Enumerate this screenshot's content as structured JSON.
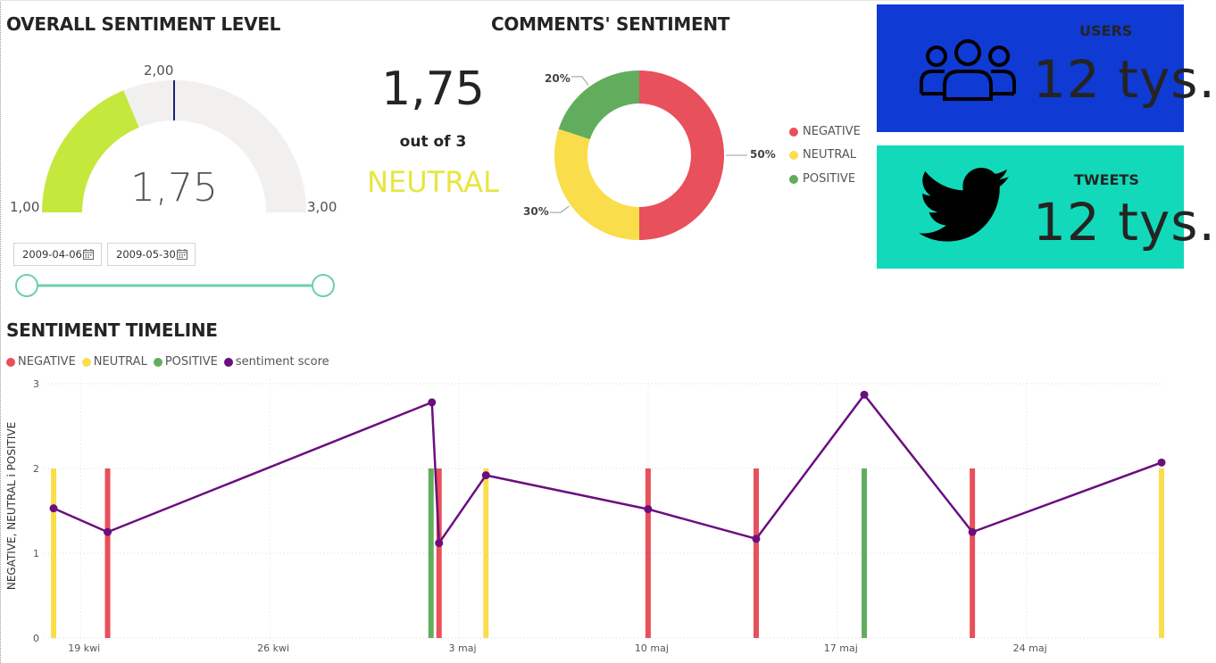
{
  "gauge": {
    "title": "OVERALL SENTIMENT LEVEL",
    "value_text": "1,75",
    "min_text": "1,00",
    "max_text": "3,00",
    "target_text": "2,00",
    "value": 1.75,
    "min": 1,
    "max": 3,
    "target": 2,
    "fill_color": "#c5e83c",
    "track_color": "#f1f0ef",
    "target_color": "#1a237e"
  },
  "score_card": {
    "value": "1,75",
    "subtitle": "out of 3",
    "status": "NEUTRAL",
    "status_color": "#e6e640"
  },
  "date_slicer": {
    "start": "2009-04-06",
    "end": "2009-05-30",
    "start_icon": "calendar-icon",
    "end_icon": "calendar-icon",
    "range_start": 0,
    "range_end": 1,
    "track_color": "#6dcfb0"
  },
  "donut": {
    "title": "COMMENTS' SENTIMENT",
    "slices": [
      {
        "name": "NEGATIVE",
        "value": 50,
        "label": "50%",
        "color": "#e8505b"
      },
      {
        "name": "NEUTRAL",
        "value": 30,
        "label": "30%",
        "color": "#fadd4b"
      },
      {
        "name": "POSITIVE",
        "value": 20,
        "label": "20%",
        "color": "#62ad5d"
      }
    ],
    "legend": [
      "NEGATIVE",
      "NEUTRAL",
      "POSITIVE"
    ]
  },
  "kpis": {
    "users": {
      "label": "USERS",
      "value": "12 tys.",
      "icon": "users-icon",
      "bg": "#0f3ad3"
    },
    "tweets": {
      "label": "TWEETS",
      "value": "12 tys.",
      "icon": "twitter-bird-icon",
      "bg": "#12d9ba"
    }
  },
  "timeline": {
    "title": "SENTIMENT TIMELINE",
    "legend": [
      {
        "name": "NEGATIVE",
        "color": "#e8505b"
      },
      {
        "name": "NEUTRAL",
        "color": "#fadd4b"
      },
      {
        "name": "POSITIVE",
        "color": "#62ad5d"
      },
      {
        "name": "sentiment score",
        "color": "#6b0f7e"
      }
    ],
    "ylabel": "NEGATIVE, NEUTRAL i POSITIVE",
    "yticks": [
      "0",
      "1",
      "2",
      "3"
    ],
    "xticks": [
      {
        "label": "19 kwi",
        "day": 19
      },
      {
        "label": "26 kwi",
        "day": 26
      },
      {
        "label": "3 maj",
        "day": 33
      },
      {
        "label": "10 maj",
        "day": 40
      },
      {
        "label": "17 maj",
        "day": 47
      },
      {
        "label": "24 maj",
        "day": 54
      }
    ]
  },
  "chart_data": {
    "type": "bar",
    "title": "SENTIMENT TIMELINE",
    "ylabel": "NEGATIVE, NEUTRAL i POSITIVE",
    "ylim": [
      0,
      3
    ],
    "x_axis": "date (2009-04-18 .. 2009-05-31)",
    "bars": [
      {
        "date": "2009-04-18",
        "series": "NEUTRAL",
        "value": 2
      },
      {
        "date": "2009-04-20",
        "series": "NEGATIVE",
        "value": 2
      },
      {
        "date": "2009-05-02",
        "series": "POSITIVE",
        "value": 2
      },
      {
        "date": "2009-05-02",
        "series": "NEGATIVE",
        "value": 2
      },
      {
        "date": "2009-05-04",
        "series": "NEUTRAL",
        "value": 2
      },
      {
        "date": "2009-05-10",
        "series": "NEGATIVE",
        "value": 2
      },
      {
        "date": "2009-05-14",
        "series": "NEGATIVE",
        "value": 2
      },
      {
        "date": "2009-05-18",
        "series": "POSITIVE",
        "value": 2
      },
      {
        "date": "2009-05-22",
        "series": "NEGATIVE",
        "value": 2
      },
      {
        "date": "2009-05-29",
        "series": "NEUTRAL",
        "value": 2
      }
    ],
    "series": [
      {
        "name": "sentiment score",
        "type": "line",
        "points": [
          {
            "date": "2009-04-18",
            "value": 1.53
          },
          {
            "date": "2009-04-20",
            "value": 1.25
          },
          {
            "date": "2009-05-02",
            "value": 2.78
          },
          {
            "date": "2009-05-02",
            "value": 1.12
          },
          {
            "date": "2009-05-04",
            "value": 1.92
          },
          {
            "date": "2009-05-10",
            "value": 1.52
          },
          {
            "date": "2009-05-14",
            "value": 1.17
          },
          {
            "date": "2009-05-18",
            "value": 2.87
          },
          {
            "date": "2009-05-22",
            "value": 1.25
          },
          {
            "date": "2009-05-29",
            "value": 2.07
          }
        ]
      }
    ]
  }
}
